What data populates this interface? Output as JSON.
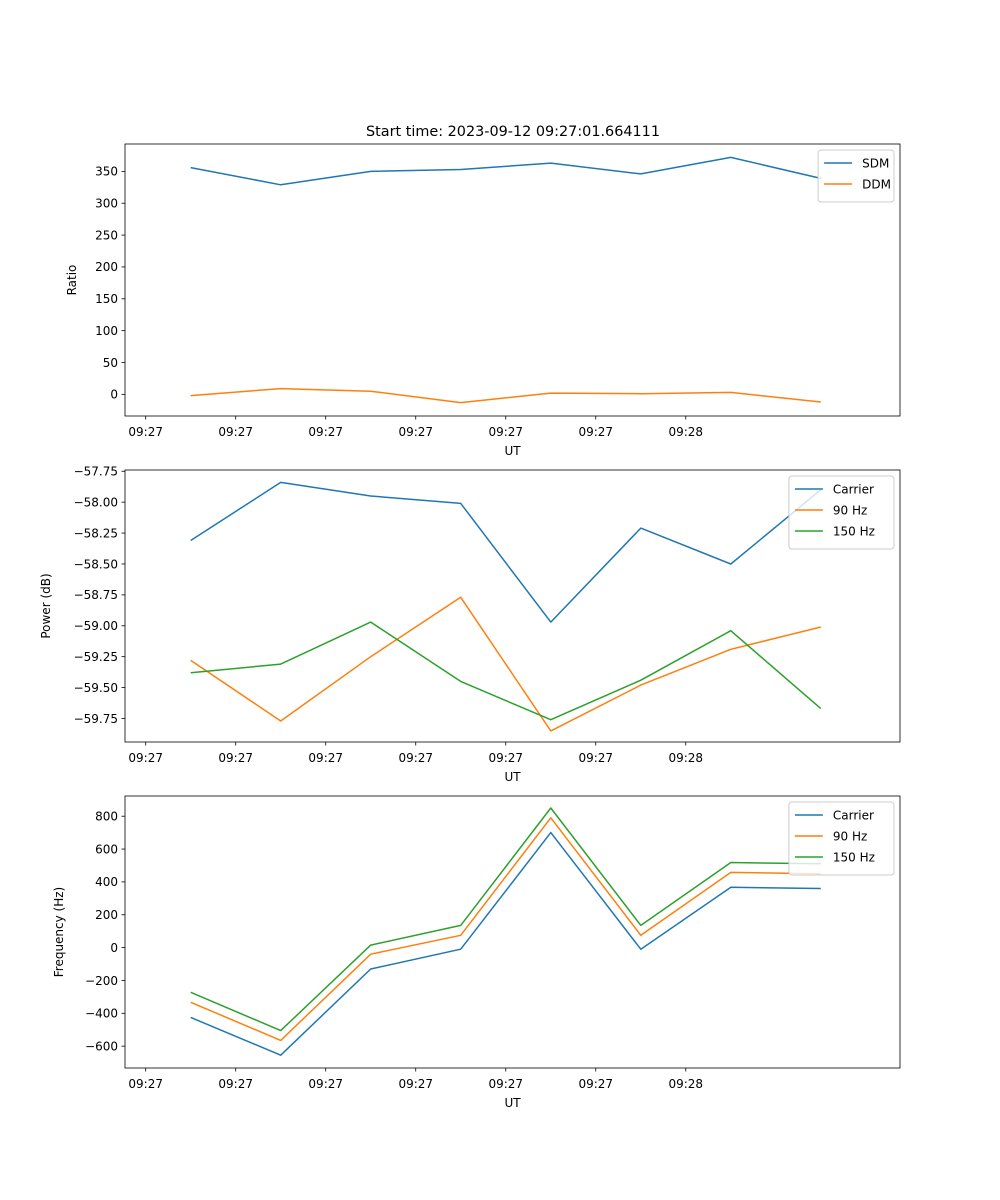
{
  "title": "Start time: 2023-09-12 09:27:01.664111",
  "chart_data": [
    {
      "type": "line",
      "title": "Start time: 2023-09-12 09:27:01.664111",
      "xlabel": "UT",
      "ylabel": "Ratio",
      "x_tick_labels": [
        "09:27",
        "09:27",
        "09:27",
        "09:27",
        "09:27",
        "09:27",
        "09:28"
      ],
      "xlim": [
        -0.23,
        8.38
      ],
      "x": [
        0.5,
        1.5,
        2.5,
        3.5,
        4.5,
        5.5,
        6.5,
        7.5
      ],
      "ylim": [
        -34,
        393
      ],
      "yticks": [
        0,
        50,
        100,
        150,
        200,
        250,
        300,
        350
      ],
      "legend_loc": "upper right",
      "series": [
        {
          "name": "SDM",
          "color": "#1f77b4",
          "values": [
            356,
            329,
            350,
            353,
            363,
            346,
            372,
            339
          ]
        },
        {
          "name": "DDM",
          "color": "#ff7f0e",
          "values": [
            -2,
            9,
            5,
            -13,
            2,
            1,
            3,
            -12
          ]
        }
      ]
    },
    {
      "type": "line",
      "title": "",
      "xlabel": "UT",
      "ylabel": "Power (dB)",
      "x_tick_labels": [
        "09:27",
        "09:27",
        "09:27",
        "09:27",
        "09:27",
        "09:27",
        "09:28"
      ],
      "xlim": [
        -0.23,
        8.38
      ],
      "x": [
        0.5,
        1.5,
        2.5,
        3.5,
        4.5,
        5.5,
        6.5,
        7.5
      ],
      "ylim": [
        -59.94,
        -57.74
      ],
      "yticks": [
        -59.75,
        -59.5,
        -59.25,
        -59.0,
        -58.75,
        -58.5,
        -58.25,
        -58.0,
        -57.75
      ],
      "tick_decimals": 2,
      "legend_loc": "upper right",
      "series": [
        {
          "name": "Carrier",
          "color": "#1f77b4",
          "values": [
            -58.31,
            -57.84,
            -57.95,
            -58.01,
            -58.97,
            -58.21,
            -58.5,
            -57.9
          ]
        },
        {
          "name": "90 Hz",
          "color": "#ff7f0e",
          "values": [
            -59.28,
            -59.77,
            -59.25,
            -58.77,
            -59.85,
            -59.48,
            -59.19,
            -59.01
          ]
        },
        {
          "name": "150 Hz",
          "color": "#2ca02c",
          "values": [
            -59.38,
            -59.31,
            -58.97,
            -59.45,
            -59.76,
            -59.44,
            -59.04,
            -59.67
          ]
        }
      ]
    },
    {
      "type": "line",
      "title": "",
      "xlabel": "UT",
      "ylabel": "Frequency (Hz)",
      "x_tick_labels": [
        "09:27",
        "09:27",
        "09:27",
        "09:27",
        "09:27",
        "09:27",
        "09:28"
      ],
      "xlim": [
        -0.23,
        8.38
      ],
      "x": [
        0.5,
        1.5,
        2.5,
        3.5,
        4.5,
        5.5,
        6.5,
        7.5
      ],
      "ylim": [
        -733,
        923
      ],
      "yticks": [
        -600,
        -400,
        -200,
        0,
        200,
        400,
        600,
        800
      ],
      "legend_loc": "upper right",
      "series": [
        {
          "name": "Carrier",
          "color": "#1f77b4",
          "values": [
            -425,
            -655,
            -130,
            -10,
            700,
            -10,
            367,
            360
          ]
        },
        {
          "name": "90 Hz",
          "color": "#ff7f0e",
          "values": [
            -333,
            -565,
            -40,
            75,
            790,
            75,
            458,
            450
          ]
        },
        {
          "name": "150 Hz",
          "color": "#2ca02c",
          "values": [
            -272,
            -505,
            15,
            135,
            850,
            135,
            518,
            510
          ]
        }
      ]
    }
  ]
}
